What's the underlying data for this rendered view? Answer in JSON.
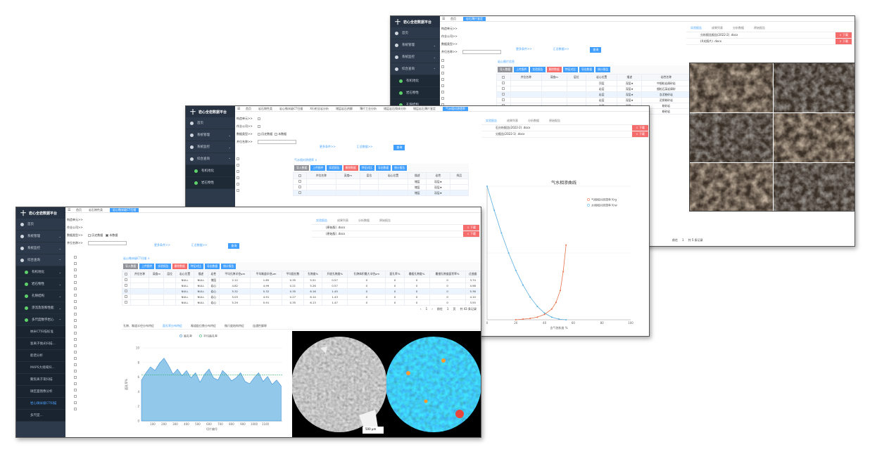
{
  "app": {
    "logo_mark": "十",
    "title": "岩心全岩数据平台"
  },
  "nav": {
    "home": "首页",
    "system": "系统管理",
    "monitor": "系统监控",
    "query": "综合查询",
    "well": "有机地化",
    "rock": "岩石物性",
    "pore": "孔隙结构",
    "seepage": "渗流及饱和性能",
    "multi": "多尺度数字岩心",
    "sub_items": [
      "纳米CT扫描标准",
      "氩离子抛光扫描...",
      "能谱分析",
      "MAPS大视域扫...",
      "聚焦离子束扫描",
      "微区面图像分析",
      "岩心微米级CT扫描",
      "多尺度..."
    ]
  },
  "tabs1": [
    "首页",
    "岩石物性类",
    "岩心微米级CT扫描"
  ],
  "tabs2": [
    "首页",
    "岩石物性类",
    "岩心微米级CT扫描",
    "X衍射全岩分析",
    "储层岩石热解",
    "薄片工业分析",
    "储层岩石铸体分析",
    "储层岩石薄片鉴定",
    "气水相对渗透率"
  ],
  "tabs3": [
    "首页",
    "岩石薄片鉴定"
  ],
  "form": {
    "basin": "构造单元>>",
    "area": "作业公司>>",
    "type": "数据类型>>",
    "well": "井位名称>>",
    "hist": "历史数据",
    "curr": "本数据",
    "more": "更多条件>>",
    "clear": "汇总数据>>",
    "query": "查询"
  },
  "panel_tabs": [
    "实验报告",
    "成果列表",
    "分析数据",
    "原始报告"
  ],
  "reports1": [
    "(原始版) .docx",
    "(原始版) .docx"
  ],
  "reports2": [
    "石分析报告(2022-2) .docx",
    "分报告(2022-1) .docx"
  ],
  "reports3": [
    "分析报告报告(2022-2) .docx",
    "(X光照片) .docx"
  ],
  "download": "下载",
  "sample_tag": "岩心图片信息",
  "toolbar": {
    "imp": "导入数据",
    "up": "上传图件",
    "report": "实验报告",
    "del": "删除数据",
    "cmp": "特征对比",
    "exp": "导出数据",
    "stat": "统计报告"
  },
  "table1": {
    "headers": [
      "井位名称",
      "深度m",
      "层位",
      "岩心位置",
      "描述",
      "岩性",
      "平均孔隙半径μm",
      "平均喉道半径μm",
      "平均配位数",
      "孔隙度%",
      "开放孔隙度%",
      "孔隙体积最大半径μm",
      "面孔率%",
      "最粗孔隙度%",
      "最细孔隙度面积率%",
      "迂曲度"
    ],
    "rows": [
      [
        "",
        "",
        "",
        "NULL",
        "NULL",
        "储层",
        "2.12",
        "1.65",
        "0.35",
        "5.51",
        "0.57",
        "0",
        "0",
        "0",
        "0",
        "3.74"
      ],
      [
        "",
        "",
        "",
        "NULL",
        "NULL",
        "岩心",
        "4.82",
        "4.99",
        "0.21",
        "5.26",
        "0.57",
        "0",
        "0",
        "0",
        "0",
        "4.98"
      ],
      [
        "",
        "",
        "",
        "NULL",
        "NULL",
        "岩心",
        "5.32",
        "5.32",
        "0.35",
        "6.16",
        "1.45",
        "0",
        "0",
        "0",
        "0",
        "5.36"
      ],
      [
        "",
        "",
        "",
        "NULL",
        "NULL",
        "岩心",
        "5.03",
        "4.91",
        "0.27",
        "6.14",
        "1.43",
        "0",
        "0",
        "0",
        "0",
        "4.10"
      ],
      [
        "",
        "",
        "",
        "NULL",
        "NULL",
        "岩心",
        "5.29",
        "5.91",
        "0.35",
        "6.13",
        "1.47",
        "0",
        "0",
        "0",
        "0",
        "3.55"
      ]
    ]
  },
  "table2": {
    "headers": [
      "井位名称",
      "深度m",
      "层位",
      "岩心位置",
      "描述",
      "岩性",
      "样品"
    ],
    "rows": [
      [
        "",
        "",
        "",
        "",
        "储层",
        "深层★",
        ""
      ],
      [
        "",
        "",
        "",
        "",
        "储层",
        "深层★",
        ""
      ],
      [
        "",
        "",
        "",
        "",
        "储层",
        "深层★",
        ""
      ]
    ]
  },
  "table3": {
    "headers": [
      "井位名称",
      "深度m",
      "层位",
      "岩心位置",
      "描述",
      "岩性名称",
      "样品",
      "气测井"
    ],
    "rows": [
      [
        "",
        "",
        "",
        "顶层",
        "深层★",
        "中细粒岩屑砂岩",
        "",
        "储层"
      ],
      [
        "",
        "",
        "",
        "岩层",
        "深层★",
        "细粒石英岩屑砂",
        "",
        "储层"
      ],
      [
        "",
        "",
        "",
        "岩层",
        "深层★",
        "含泥粉砂岩",
        "",
        "储层"
      ],
      [
        "",
        "",
        "",
        "岩层",
        "深层★",
        "泥质粉砂岩",
        "",
        "储层"
      ],
      [
        "",
        "",
        "",
        "岩层",
        "深层★",
        "粉砂岩",
        "",
        "储层"
      ],
      [
        "",
        "",
        "",
        "岩层",
        "深层★",
        "粉砂岩",
        "",
        "储层"
      ]
    ]
  },
  "pager1": {
    "prev": "‹",
    "page": "1",
    "next": "›",
    "goto": "前往",
    "pg": "1",
    "unit": "页",
    "total": "共 43 条记录"
  },
  "pager3": {
    "goto": "前往",
    "pg": "1",
    "total": "共 5 条记录"
  },
  "char_tabs": [
    "孔隙、喉道半径分布特征",
    "面孔率分布特征",
    "喉道配位数分布特征",
    "微尺度结构特征",
    "连通性解释"
  ],
  "scale_bar": "500 μm",
  "chart_data": [
    {
      "type": "area",
      "legend": [
        "面孔率",
        "平均面孔率"
      ],
      "legend_position": "top",
      "xlabel": "切片编号",
      "ylabel": "面孔率%",
      "xlim": [
        0,
        1250
      ],
      "ylim": [
        0,
        10
      ],
      "x_ticks": [
        100,
        200,
        300,
        400,
        500,
        600,
        700,
        800,
        900,
        1000,
        1100
      ],
      "y_ticks": [
        0,
        2,
        4,
        6,
        8,
        10
      ],
      "series": [
        {
          "name": "面孔率",
          "x": [
            0,
            40,
            80,
            120,
            160,
            200,
            240,
            280,
            320,
            360,
            400,
            440,
            480,
            520,
            560,
            600,
            640,
            680,
            720,
            760,
            800,
            840,
            880,
            920,
            960,
            1000,
            1040,
            1080,
            1120,
            1160,
            1200,
            1240
          ],
          "values": [
            5.6,
            6.6,
            7.4,
            6.9,
            7.9,
            8.6,
            7.6,
            6.4,
            7.1,
            6.2,
            6.9,
            5.9,
            6.6,
            5.3,
            6.4,
            7.1,
            5.9,
            5.6,
            6.9,
            6.3,
            5.5,
            5.9,
            6.6,
            5.4,
            5.1,
            5.9,
            6.6,
            5.4,
            6.1,
            5.0,
            5.6,
            4.8
          ]
        },
        {
          "name": "平均面孔率",
          "values": [
            6.3
          ]
        }
      ]
    },
    {
      "type": "line",
      "title": "气水相渗曲线",
      "legend": [
        "气相相对渗透率 Krg",
        "水相相对渗透率 Krw"
      ],
      "legend_position": "top-right",
      "xlabel": "含气饱和度 %",
      "xlim": [
        0,
        100
      ],
      "ylim": [
        0,
        1
      ],
      "x_ticks": [
        0,
        20,
        40,
        60,
        80,
        100
      ],
      "y_ticks": [
        0,
        0.5,
        1
      ],
      "series": [
        {
          "name": "水相相对渗透率 Krw",
          "x": [
            0,
            5,
            10,
            15,
            20,
            25,
            30,
            35,
            40,
            45,
            50,
            55
          ],
          "values": [
            1.0,
            0.82,
            0.65,
            0.5,
            0.37,
            0.26,
            0.17,
            0.1,
            0.05,
            0.02,
            0.005,
            0
          ]
        },
        {
          "name": "气相相对渗透率 Krg",
          "x": [
            20,
            25,
            30,
            35,
            40,
            45,
            48,
            51,
            53,
            55
          ],
          "values": [
            0,
            0.005,
            0.01,
            0.02,
            0.04,
            0.08,
            0.13,
            0.22,
            0.36,
            0.56
          ]
        }
      ]
    }
  ],
  "colors": {
    "sidebar": "#2d3a4b",
    "accent": "#409eff",
    "danger": "#f56c6c",
    "krg": "#e8734a",
    "krw": "#5aaee0",
    "area": "#7fbfe8"
  }
}
